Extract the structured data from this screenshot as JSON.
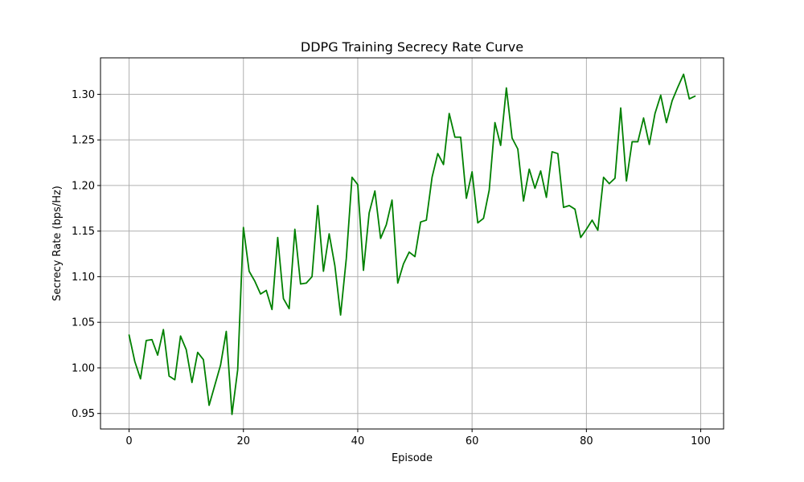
{
  "chart_data": {
    "type": "line",
    "title": "DDPG Training Secrecy Rate Curve",
    "xlabel": "Episode",
    "ylabel": "Secrecy Rate (bps/Hz)",
    "xlim": [
      -5,
      104
    ],
    "ylim": [
      0.933,
      1.34
    ],
    "xticks": [
      0,
      20,
      40,
      60,
      80,
      100
    ],
    "yticks": [
      0.95,
      1.0,
      1.05,
      1.1,
      1.15,
      1.2,
      1.25,
      1.3
    ],
    "xtick_labels": [
      "0",
      "20",
      "40",
      "60",
      "80",
      "100"
    ],
    "ytick_labels": [
      "0.95",
      "1.00",
      "1.05",
      "1.10",
      "1.15",
      "1.20",
      "1.25",
      "1.30"
    ],
    "grid": true,
    "line_color": "#008000",
    "series": [
      {
        "x": [
          0,
          1,
          2,
          3,
          4,
          5,
          6,
          7,
          8,
          9,
          10,
          11,
          12,
          13,
          14,
          15,
          16,
          17,
          18,
          19,
          20,
          21,
          22,
          23,
          24,
          25,
          26,
          27,
          28,
          29,
          30,
          31,
          32,
          33,
          34,
          35,
          36,
          37,
          38,
          39,
          40,
          41,
          42,
          43,
          44,
          45,
          46,
          47,
          48,
          49,
          50,
          51,
          52,
          53,
          54,
          55,
          56,
          57,
          58,
          59,
          60,
          61,
          62,
          63,
          64,
          65,
          66,
          67,
          68,
          69,
          70,
          71,
          72,
          73,
          74,
          75,
          76,
          77,
          78,
          79,
          80,
          81,
          82,
          83,
          84,
          85,
          86,
          87,
          88,
          89,
          90,
          91,
          92,
          93,
          94,
          95,
          96,
          97,
          98,
          99
        ],
        "values": [
          1.036,
          1.007,
          0.988,
          1.03,
          1.031,
          1.014,
          1.042,
          0.991,
          0.987,
          1.035,
          1.02,
          0.984,
          1.017,
          1.009,
          0.959,
          0.981,
          1.003,
          1.04,
          0.949,
          0.998,
          1.154,
          1.106,
          1.095,
          1.081,
          1.085,
          1.064,
          1.143,
          1.076,
          1.065,
          1.152,
          1.092,
          1.093,
          1.1,
          1.178,
          1.106,
          1.147,
          1.112,
          1.058,
          1.12,
          1.209,
          1.201,
          1.107,
          1.17,
          1.194,
          1.142,
          1.157,
          1.184,
          1.093,
          1.114,
          1.127,
          1.122,
          1.16,
          1.162,
          1.209,
          1.235,
          1.223,
          1.279,
          1.253,
          1.253,
          1.186,
          1.215,
          1.159,
          1.164,
          1.195,
          1.269,
          1.244,
          1.307,
          1.252,
          1.24,
          1.183,
          1.218,
          1.197,
          1.216,
          1.187,
          1.237,
          1.235,
          1.176,
          1.178,
          1.174,
          1.143,
          1.152,
          1.162,
          1.151,
          1.209,
          1.202,
          1.208,
          1.285,
          1.205,
          1.248,
          1.248,
          1.274,
          1.245,
          1.279,
          1.299,
          1.269,
          1.293,
          1.308,
          1.322,
          1.295,
          1.298
        ]
      }
    ]
  }
}
